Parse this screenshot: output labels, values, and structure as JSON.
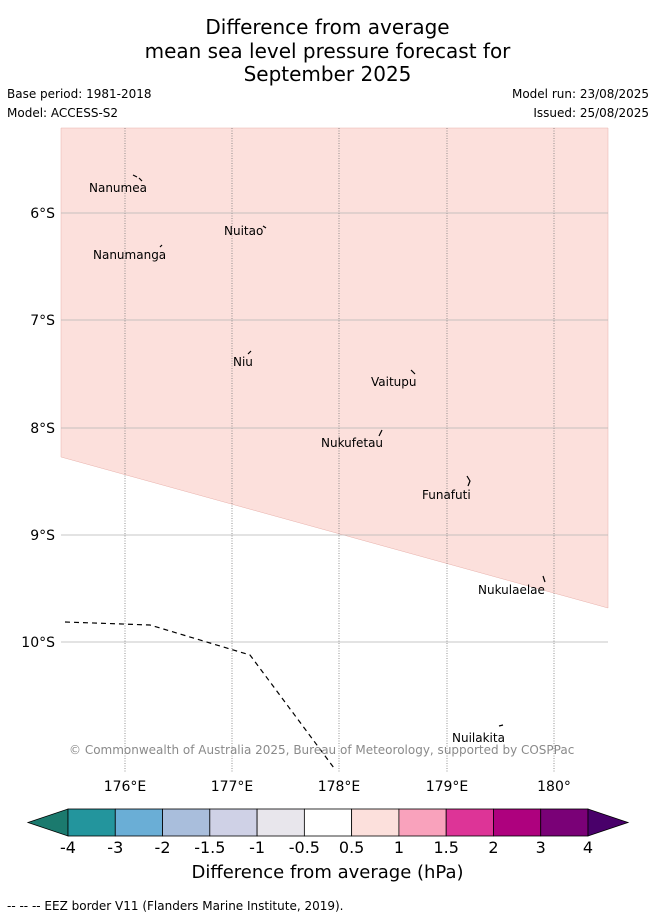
{
  "header": {
    "title_lines": [
      "Difference from average",
      "mean sea level pressure forecast for",
      "September 2025"
    ],
    "base_period": "Base period: 1981-2018",
    "model": "Model: ACCESS-S2",
    "model_run": "Model run: 23/08/2025",
    "issued": "Issued: 25/08/2025"
  },
  "map": {
    "x_ticks": [
      "176°E",
      "177°E",
      "178°E",
      "179°E",
      "180°"
    ],
    "y_ticks": [
      "6°S",
      "7°S",
      "8°S",
      "9°S",
      "10°S"
    ],
    "shaded_category": "0.5 to 1",
    "shaded_color": "#fce0dc",
    "islands": [
      {
        "name": "Nanumea"
      },
      {
        "name": "Nuitao"
      },
      {
        "name": "Nanumanga"
      },
      {
        "name": "Niu"
      },
      {
        "name": "Vaitupu"
      },
      {
        "name": "Nukufetau"
      },
      {
        "name": "Funafuti"
      },
      {
        "name": "Nukulaelae"
      },
      {
        "name": "Nuilakita"
      }
    ],
    "copyright": "© Commonwealth of Australia 2025, Bureau of Meteorology, supported by COSPPac"
  },
  "colorbar": {
    "labels": [
      "-4",
      "-3",
      "-2",
      "-1.5",
      "-1",
      "-0.5",
      "0.5",
      "1",
      "1.5",
      "2",
      "3",
      "4"
    ],
    "colors": [
      "#1b7a6e",
      "#23959d",
      "#6aaed6",
      "#a9bedc",
      "#cfd1e6",
      "#e8e6ec",
      "#ffffff",
      "#fce0dc",
      "#f9a2bc",
      "#dd3497",
      "#ae017e",
      "#7a0177",
      "#49006a"
    ],
    "title": "Difference from average (hPa)"
  },
  "footer": {
    "eez_note": "--  --  -- EEZ border V11 (Flanders Marine Institute, 2019)."
  }
}
